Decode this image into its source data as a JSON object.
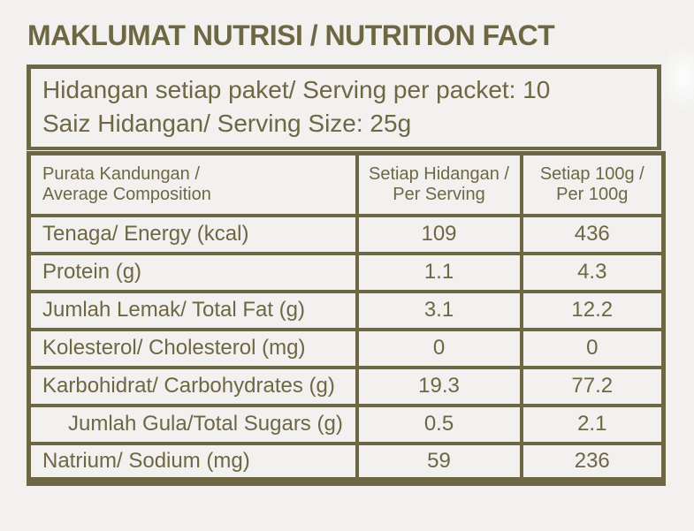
{
  "colors": {
    "olive": "#6d6744",
    "background": "#f2f1ef"
  },
  "title": "MAKLUMAT NUTRISI / NUTRITION FACT",
  "serving_box": {
    "line1": "Hidangan setiap paket/ Serving per packet: 10",
    "line2": "Saiz Hidangan/ Serving Size: 25g"
  },
  "table": {
    "headers": [
      {
        "line1": "Purata Kandungan /",
        "line2": "Average Composition"
      },
      {
        "line1": "Setiap Hidangan /",
        "line2": "Per Serving"
      },
      {
        "line1": "Setiap 100g /",
        "line2": "Per 100g"
      }
    ],
    "rows": [
      {
        "label": "Tenaga/ Energy (kcal)",
        "per_serving": "109",
        "per_100g": "436"
      },
      {
        "label": "Protein (g)",
        "per_serving": "1.1",
        "per_100g": "4.3"
      },
      {
        "label": "Jumlah Lemak/ Total Fat (g)",
        "per_serving": "3.1",
        "per_100g": "12.2"
      },
      {
        "label": "Kolesterol/ Cholesterol (mg)",
        "per_serving": "0",
        "per_100g": "0"
      },
      {
        "label": "Karbohidrat/ Carbohydrates (g)",
        "per_serving": "19.3",
        "per_100g": "77.2"
      },
      {
        "label": "Jumlah Gula/Total Sugars (g)",
        "per_serving": "0.5",
        "per_100g": "2.1"
      },
      {
        "label": "Natrium/ Sodium (mg)",
        "per_serving": "59",
        "per_100g": "236"
      }
    ]
  }
}
